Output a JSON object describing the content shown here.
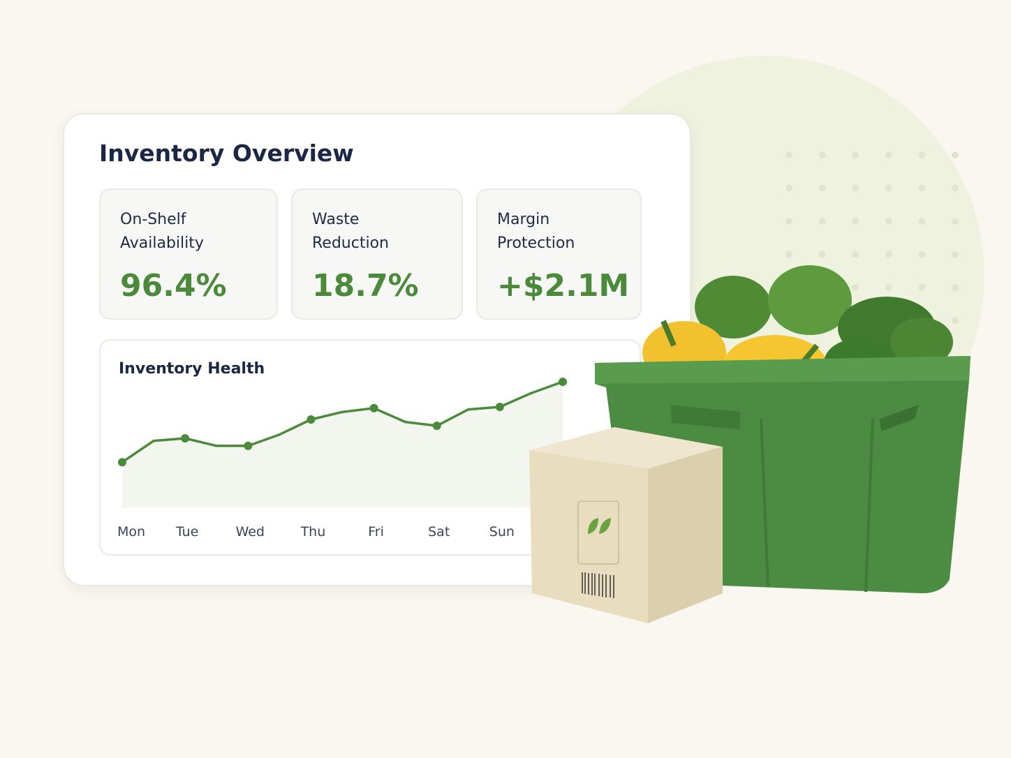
{
  "header": {
    "title": "Inventory Overview"
  },
  "kpis": [
    {
      "label": "On-Shelf Availability",
      "value": "96.4%"
    },
    {
      "label": "Waste Reduction",
      "value": "18.7%"
    },
    {
      "label": "Margin Protection",
      "value": "+$2.1M"
    }
  ],
  "chart_data": {
    "type": "line",
    "title": "Inventory Health",
    "categories": [
      "Mon",
      null,
      "Tue",
      null,
      "Wed",
      null,
      "Thu",
      null,
      "Fri",
      null,
      "Sat",
      null,
      "Sun",
      null,
      null
    ],
    "values": [
      36,
      53,
      55,
      49,
      49,
      58,
      70,
      76,
      79,
      68,
      65,
      78,
      80,
      91,
      100
    ],
    "color": "#4a8a3a"
  }
}
